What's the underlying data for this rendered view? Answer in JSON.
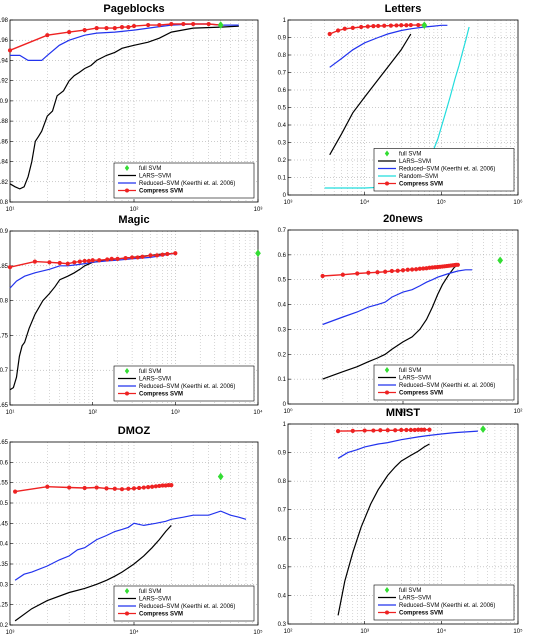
{
  "colors": {
    "full_svm": "#33dd33",
    "lars_svm": "#000000",
    "reduced_svm": "#2233ee",
    "random_svm": "#22dddd",
    "compress_svm": "#ee2222",
    "grid": "#999999"
  },
  "legend_labels": {
    "full": "full SVM",
    "lars": "LARS–SVM",
    "reduced": "Reduced–SVM (Keerthi et. al. 2006)",
    "random": "Random–SVM",
    "compress": "Compress SVM"
  },
  "chart_data": [
    {
      "type": "line",
      "title": "Pageblocks",
      "x_scale": "log",
      "xlim": [
        10,
        1000
      ],
      "ylim": [
        0.8,
        0.98
      ],
      "x_tick_labels": [
        "10¹",
        "10²",
        "10³"
      ],
      "y_tick_labels": [
        "0.8",
        "0.82",
        "0.84",
        "0.86",
        "0.88",
        "0.9",
        "0.92",
        "0.94",
        "0.96",
        "0.98"
      ],
      "grid": true,
      "legend_position": "bottom-right",
      "series": [
        {
          "key": "lars",
          "x": [
            10,
            11,
            12,
            13,
            14,
            15,
            16,
            17,
            18,
            20,
            22,
            24,
            27,
            30,
            33,
            36,
            40,
            45,
            50,
            60,
            70,
            80,
            100,
            130,
            160,
            200,
            300,
            500,
            700
          ],
          "y": [
            0.818,
            0.815,
            0.813,
            0.815,
            0.825,
            0.84,
            0.86,
            0.865,
            0.87,
            0.885,
            0.89,
            0.905,
            0.91,
            0.92,
            0.925,
            0.928,
            0.932,
            0.935,
            0.94,
            0.945,
            0.948,
            0.952,
            0.955,
            0.958,
            0.962,
            0.968,
            0.972,
            0.973,
            0.974
          ]
        },
        {
          "key": "reduced",
          "x": [
            10,
            12,
            14,
            16,
            18,
            20,
            25,
            30,
            40,
            50,
            70,
            100,
            150,
            200,
            300,
            400,
            500,
            700
          ],
          "y": [
            0.945,
            0.945,
            0.94,
            0.94,
            0.94,
            0.945,
            0.955,
            0.96,
            0.965,
            0.967,
            0.968,
            0.97,
            0.973,
            0.975,
            0.976,
            0.976,
            0.975,
            0.975
          ]
        },
        {
          "key": "compress",
          "x": [
            10,
            20,
            30,
            40,
            50,
            60,
            70,
            80,
            90,
            100,
            130,
            160,
            200,
            250,
            300,
            400,
            500
          ],
          "y": [
            0.95,
            0.965,
            0.968,
            0.97,
            0.972,
            0.972,
            0.972,
            0.973,
            0.973,
            0.974,
            0.975,
            0.975,
            0.976,
            0.976,
            0.976,
            0.976,
            0.975
          ]
        },
        {
          "key": "full",
          "x": [
            500
          ],
          "y": [
            0.975
          ]
        }
      ]
    },
    {
      "type": "line",
      "title": "Letters",
      "x_scale": "log",
      "xlim": [
        1000,
        1000000
      ],
      "ylim": [
        0,
        1
      ],
      "x_tick_labels": [
        "10³",
        "10⁴",
        "10⁵",
        "10⁶"
      ],
      "y_tick_labels": [
        "0",
        "0.1",
        "0.2",
        "0.3",
        "0.4",
        "0.5",
        "0.6",
        "0.7",
        "0.8",
        "0.9",
        "1"
      ],
      "grid": true,
      "legend_position": "bottom-right",
      "series": [
        {
          "key": "lars",
          "x": [
            3500,
            5000,
            7000,
            10000,
            15000,
            20000,
            30000,
            40000
          ],
          "y": [
            0.23,
            0.35,
            0.47,
            0.56,
            0.66,
            0.73,
            0.83,
            0.92
          ]
        },
        {
          "key": "reduced",
          "x": [
            3500,
            5000,
            7000,
            10000,
            15000,
            20000,
            30000,
            40000,
            60000,
            80000,
            100000,
            120000
          ],
          "y": [
            0.73,
            0.78,
            0.83,
            0.87,
            0.9,
            0.92,
            0.94,
            0.95,
            0.96,
            0.965,
            0.97,
            0.97
          ]
        },
        {
          "key": "random",
          "x": [
            3000,
            10000,
            30000,
            50000,
            70000,
            90000,
            110000,
            130000,
            150000,
            170000,
            190000,
            210000,
            230000
          ],
          "y": [
            0.04,
            0.04,
            0.05,
            0.1,
            0.2,
            0.32,
            0.45,
            0.56,
            0.66,
            0.74,
            0.82,
            0.89,
            0.96
          ]
        },
        {
          "key": "compress",
          "x": [
            3500,
            4500,
            5500,
            7000,
            9000,
            11000,
            13000,
            15000,
            18000,
            22000,
            26000,
            30000,
            35000,
            40000,
            50000,
            60000
          ],
          "y": [
            0.92,
            0.94,
            0.95,
            0.955,
            0.96,
            0.963,
            0.965,
            0.966,
            0.967,
            0.968,
            0.969,
            0.97,
            0.97,
            0.971,
            0.971,
            0.972
          ]
        },
        {
          "key": "full",
          "x": [
            60000
          ],
          "y": [
            0.97
          ]
        }
      ]
    },
    {
      "type": "line",
      "title": "Magic",
      "x_scale": "log",
      "xlim": [
        10,
        10000
      ],
      "ylim": [
        0.65,
        0.9
      ],
      "x_tick_labels": [
        "10¹",
        "10²",
        "10³",
        "10⁴"
      ],
      "y_tick_labels": [
        "0.65",
        "0.7",
        "0.75",
        "0.8",
        "0.85",
        "0.9"
      ],
      "grid": true,
      "legend_position": "bottom-right",
      "series": [
        {
          "key": "lars",
          "x": [
            10,
            11,
            12,
            13,
            14,
            15,
            17,
            20,
            25,
            30,
            35,
            40,
            50,
            60,
            70,
            80,
            100,
            150,
            200,
            300,
            500,
            700,
            1000
          ],
          "y": [
            0.672,
            0.675,
            0.69,
            0.72,
            0.735,
            0.74,
            0.76,
            0.78,
            0.8,
            0.81,
            0.82,
            0.83,
            0.835,
            0.84,
            0.845,
            0.85,
            0.855,
            0.858,
            0.86,
            0.862,
            0.865,
            0.867,
            0.868
          ]
        },
        {
          "key": "reduced",
          "x": [
            10,
            12,
            15,
            20,
            30,
            40,
            50,
            70,
            100,
            150,
            200,
            300,
            500,
            700,
            1000
          ],
          "y": [
            0.818,
            0.828,
            0.835,
            0.84,
            0.845,
            0.85,
            0.85,
            0.852,
            0.855,
            0.857,
            0.858,
            0.86,
            0.862,
            0.865,
            0.868
          ]
        },
        {
          "key": "compress",
          "x": [
            10,
            20,
            30,
            40,
            50,
            60,
            70,
            80,
            90,
            100,
            120,
            150,
            170,
            200,
            250,
            300,
            350,
            400,
            500,
            600,
            700,
            800,
            1000
          ],
          "y": [
            0.848,
            0.856,
            0.855,
            0.854,
            0.853,
            0.855,
            0.856,
            0.857,
            0.857,
            0.858,
            0.858,
            0.859,
            0.86,
            0.86,
            0.861,
            0.862,
            0.862,
            0.863,
            0.865,
            0.865,
            0.866,
            0.867,
            0.868
          ]
        },
        {
          "key": "full",
          "x": [
            10000
          ],
          "y": [
            0.868
          ]
        }
      ]
    },
    {
      "type": "line",
      "title": "20news",
      "x_scale": "log",
      "xlim": [
        1,
        100
      ],
      "ylim": [
        0,
        0.7
      ],
      "x_tick_labels": [
        "10⁰",
        "10¹",
        "10²"
      ],
      "y_tick_labels": [
        "0",
        "0.1",
        "0.2",
        "0.3",
        "0.4",
        "0.5",
        "0.6",
        "0.7"
      ],
      "grid": true,
      "legend_position": "bottom-right",
      "series": [
        {
          "key": "lars",
          "x": [
            2,
            3,
            4,
            5,
            6,
            7,
            8,
            10,
            12,
            14,
            16,
            18,
            20,
            22,
            25,
            28,
            30
          ],
          "y": [
            0.1,
            0.13,
            0.15,
            0.17,
            0.185,
            0.2,
            0.22,
            0.25,
            0.27,
            0.3,
            0.34,
            0.39,
            0.44,
            0.48,
            0.52,
            0.55,
            0.56
          ]
        },
        {
          "key": "reduced",
          "x": [
            2,
            3,
            4,
            5,
            6,
            7,
            8,
            10,
            12,
            14,
            16,
            18,
            20,
            25,
            30,
            35,
            40
          ],
          "y": [
            0.32,
            0.35,
            0.37,
            0.39,
            0.4,
            0.41,
            0.43,
            0.45,
            0.46,
            0.475,
            0.49,
            0.5,
            0.51,
            0.525,
            0.535,
            0.54,
            0.54
          ]
        },
        {
          "key": "compress",
          "x": [
            2,
            3,
            4,
            5,
            6,
            7,
            8,
            9,
            10,
            11,
            12,
            13,
            14,
            15,
            16,
            17,
            18,
            19,
            20,
            21,
            22,
            23,
            24,
            25,
            26,
            27,
            28,
            29,
            30
          ],
          "y": [
            0.515,
            0.52,
            0.525,
            0.528,
            0.53,
            0.532,
            0.535,
            0.536,
            0.538,
            0.54,
            0.541,
            0.542,
            0.544,
            0.545,
            0.546,
            0.548,
            0.549,
            0.55,
            0.551,
            0.552,
            0.553,
            0.554,
            0.555,
            0.556,
            0.557,
            0.558,
            0.559,
            0.56,
            0.56
          ]
        },
        {
          "key": "full",
          "x": [
            70
          ],
          "y": [
            0.578
          ]
        }
      ]
    },
    {
      "type": "line",
      "title": "DMOZ",
      "x_scale": "log",
      "xlim": [
        1000,
        100000
      ],
      "ylim": [
        0.2,
        0.65
      ],
      "x_tick_labels": [
        "10³",
        "10⁴",
        "10⁵"
      ],
      "y_tick_labels": [
        "0.2",
        "0.25",
        "0.3",
        "0.35",
        "0.4",
        "0.45",
        "0.5",
        "0.55",
        "0.6",
        "0.65"
      ],
      "grid": true,
      "legend_position": "bottom-right",
      "series": [
        {
          "key": "lars",
          "x": [
            1100,
            1500,
            2000,
            3000,
            4000,
            5000,
            6000,
            7000,
            8000,
            10000,
            12000,
            14000,
            16000,
            18000,
            20000
          ],
          "y": [
            0.21,
            0.24,
            0.26,
            0.28,
            0.29,
            0.3,
            0.31,
            0.32,
            0.33,
            0.35,
            0.37,
            0.39,
            0.41,
            0.43,
            0.445
          ]
        },
        {
          "key": "reduced",
          "x": [
            1100,
            1300,
            1500,
            2000,
            2500,
            3000,
            3500,
            4000,
            5000,
            6000,
            7000,
            8000,
            9000,
            10000,
            12000,
            15000,
            18000,
            20000,
            25000,
            30000,
            40000,
            50000,
            60000,
            70000,
            80000
          ],
          "y": [
            0.31,
            0.325,
            0.33,
            0.345,
            0.36,
            0.37,
            0.385,
            0.39,
            0.41,
            0.42,
            0.43,
            0.435,
            0.44,
            0.45,
            0.445,
            0.45,
            0.455,
            0.46,
            0.465,
            0.47,
            0.47,
            0.48,
            0.47,
            0.465,
            0.46
          ]
        },
        {
          "key": "compress",
          "x": [
            1100,
            2000,
            3000,
            4000,
            5000,
            6000,
            7000,
            8000,
            9000,
            10000,
            11000,
            12000,
            13000,
            14000,
            15000,
            16000,
            17000,
            18000,
            19000,
            20000
          ],
          "y": [
            0.528,
            0.54,
            0.538,
            0.537,
            0.538,
            0.536,
            0.535,
            0.534,
            0.535,
            0.536,
            0.537,
            0.538,
            0.539,
            0.54,
            0.541,
            0.542,
            0.543,
            0.543,
            0.544,
            0.544
          ]
        },
        {
          "key": "full",
          "x": [
            50000
          ],
          "y": [
            0.565
          ]
        }
      ]
    },
    {
      "type": "line",
      "title": "MNIST",
      "x_scale": "log",
      "xlim": [
        100,
        100000
      ],
      "ylim": [
        0.3,
        1
      ],
      "x_tick_labels": [
        "10²",
        "10³",
        "10⁴",
        "10⁵"
      ],
      "y_tick_labels": [
        "0.3",
        "0.4",
        "0.5",
        "0.6",
        "0.7",
        "0.8",
        "0.9",
        "1"
      ],
      "grid": true,
      "legend_position": "bottom-right",
      "series": [
        {
          "key": "lars",
          "x": [
            450,
            550,
            700,
            900,
            1200,
            1500,
            2000,
            2500,
            3000,
            4000,
            5000,
            6000,
            7000
          ],
          "y": [
            0.33,
            0.45,
            0.55,
            0.64,
            0.72,
            0.77,
            0.82,
            0.85,
            0.87,
            0.89,
            0.905,
            0.92,
            0.93
          ]
        },
        {
          "key": "reduced",
          "x": [
            450,
            600,
            800,
            1000,
            1500,
            2000,
            3000,
            5000,
            7000,
            10000,
            15000,
            20000,
            30000
          ],
          "y": [
            0.88,
            0.9,
            0.91,
            0.92,
            0.93,
            0.935,
            0.945,
            0.955,
            0.96,
            0.965,
            0.97,
            0.972,
            0.975
          ]
        },
        {
          "key": "compress",
          "x": [
            450,
            700,
            1000,
            1300,
            1600,
            2000,
            2500,
            3000,
            3500,
            4000,
            4500,
            5000,
            5500,
            6000,
            7000
          ],
          "y": [
            0.975,
            0.976,
            0.977,
            0.977,
            0.978,
            0.978,
            0.978,
            0.979,
            0.979,
            0.979,
            0.979,
            0.98,
            0.98,
            0.98,
            0.98
          ]
        },
        {
          "key": "full",
          "x": [
            35000
          ],
          "y": [
            0.982
          ]
        }
      ]
    }
  ]
}
